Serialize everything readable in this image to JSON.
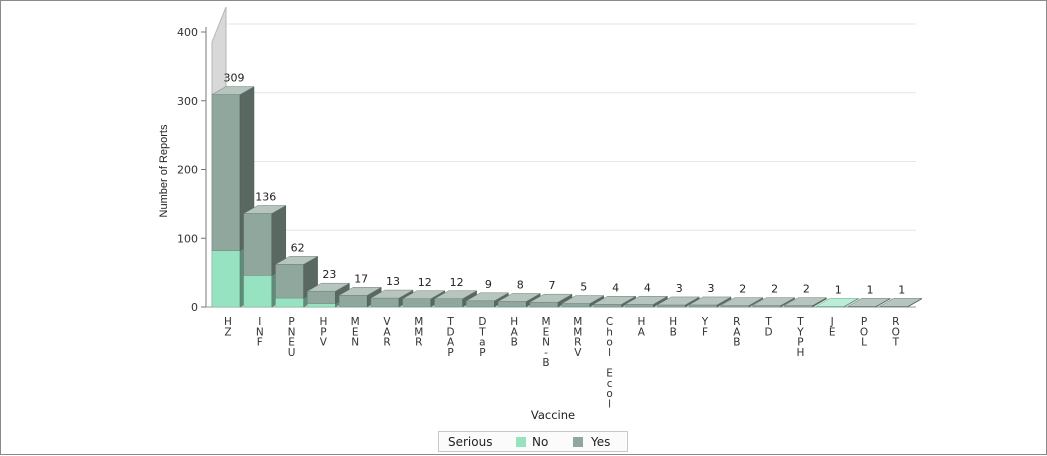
{
  "chart_data": {
    "type": "bar",
    "xlabel": "Vaccine",
    "ylabel": "Number of Reports",
    "ylim": [
      0,
      400
    ],
    "yticks": [
      0,
      100,
      200,
      300,
      400
    ],
    "categories": [
      "HZ",
      "INF",
      "PNEU",
      "HPV",
      "MEN",
      "VAR",
      "MMR",
      "TDAP",
      "DTaP",
      "HAB",
      "MEN-B",
      "MMRV",
      "Chol Ecol",
      "HA",
      "HB",
      "YF",
      "RAB",
      "TD",
      "TYPH",
      "JE",
      "POL",
      "ROT"
    ],
    "tick_labels": [
      [
        "H",
        "Z"
      ],
      [
        "I",
        "N",
        "F"
      ],
      [
        "P",
        "N",
        "E",
        "U"
      ],
      [
        "H",
        "P",
        "V"
      ],
      [
        "M",
        "E",
        "N"
      ],
      [
        "V",
        "A",
        "R"
      ],
      [
        "M",
        "M",
        "R"
      ],
      [
        "T",
        "D",
        "A",
        "P"
      ],
      [
        "D",
        "T",
        "a",
        "P"
      ],
      [
        "H",
        "A",
        "B"
      ],
      [
        "M",
        "E",
        "N",
        "-",
        "B"
      ],
      [
        "M",
        "M",
        "R",
        "V"
      ],
      [
        "C",
        "h",
        "o",
        "l",
        "",
        "E",
        "c",
        "o",
        "l"
      ],
      [
        "H",
        "A"
      ],
      [
        "H",
        "B"
      ],
      [
        "Y",
        "F"
      ],
      [
        "R",
        "A",
        "B"
      ],
      [
        "T",
        "D"
      ],
      [
        "T",
        "Y",
        "P",
        "H"
      ],
      [
        "J",
        "E"
      ],
      [
        "P",
        "O",
        "L"
      ],
      [
        "R",
        "O",
        "T"
      ]
    ],
    "totals": [
      309,
      136,
      62,
      23,
      17,
      13,
      12,
      12,
      9,
      8,
      7,
      5,
      4,
      4,
      3,
      3,
      2,
      2,
      2,
      1,
      1,
      1
    ],
    "series": [
      {
        "name": "No",
        "color": "#97e2c1",
        "values": [
          82,
          46,
          13,
          5,
          1,
          1,
          1,
          1,
          1,
          1,
          0,
          1,
          0,
          0,
          0,
          0,
          0,
          0,
          0,
          1,
          0,
          0
        ]
      },
      {
        "name": "Yes",
        "color": "#8fa79d",
        "values": [
          227,
          90,
          49,
          18,
          16,
          12,
          11,
          11,
          8,
          7,
          7,
          4,
          4,
          4,
          3,
          3,
          2,
          2,
          2,
          0,
          1,
          1
        ]
      }
    ],
    "legend": {
      "title": "Serious",
      "position": "bottom"
    },
    "grid": true,
    "bar_style": "3d-stacked"
  }
}
